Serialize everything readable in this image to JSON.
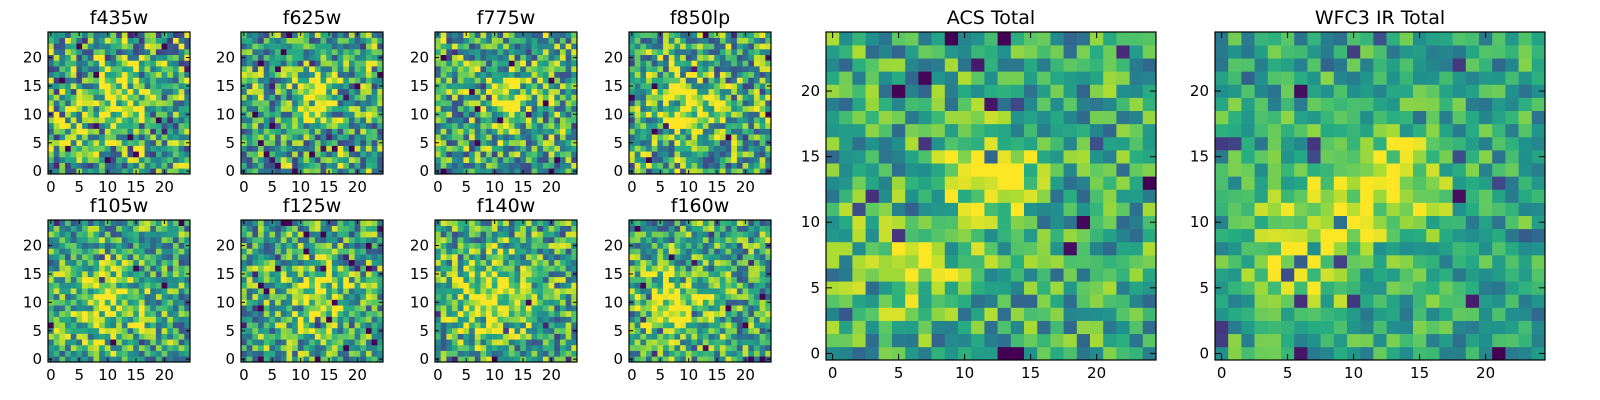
{
  "chart_data": {
    "type": "heatmap",
    "colormap": "viridis",
    "grid": false,
    "panels": [
      {
        "title": "f435w",
        "xlim": [
          0,
          24
        ],
        "ylim": [
          0,
          24
        ],
        "xticks": [
          0,
          5,
          10,
          15,
          20
        ],
        "yticks": [
          0,
          5,
          10,
          15,
          20
        ],
        "blob": {
          "x": 12,
          "y": 13,
          "strength": 0.32,
          "width": 3.5
        },
        "noise": 0.55,
        "seed": 11
      },
      {
        "title": "f625w",
        "xlim": [
          0,
          24
        ],
        "ylim": [
          0,
          24
        ],
        "xticks": [
          0,
          5,
          10,
          15,
          20
        ],
        "yticks": [
          0,
          5,
          10,
          15,
          20
        ],
        "blob": {
          "x": 12,
          "y": 13,
          "strength": 0.42,
          "width": 2.6
        },
        "noise": 0.5,
        "seed": 23
      },
      {
        "title": "f775w",
        "xlim": [
          0,
          24
        ],
        "ylim": [
          0,
          24
        ],
        "xticks": [
          0,
          5,
          10,
          15,
          20
        ],
        "yticks": [
          0,
          5,
          10,
          15,
          20
        ],
        "blob": {
          "x": 12,
          "y": 13,
          "strength": 0.4,
          "width": 3.0
        },
        "noise": 0.5,
        "seed": 37
      },
      {
        "title": "f850lp",
        "xlim": [
          0,
          24
        ],
        "ylim": [
          0,
          24
        ],
        "xticks": [
          0,
          5,
          10,
          15,
          20
        ],
        "yticks": [
          0,
          5,
          10,
          15,
          20
        ],
        "blob": {
          "x": 10,
          "y": 11,
          "strength": 0.36,
          "width": 3.6
        },
        "noise": 0.5,
        "seed": 41
      },
      {
        "title": "f105w",
        "xlim": [
          0,
          24
        ],
        "ylim": [
          0,
          24
        ],
        "xticks": [
          0,
          5,
          10,
          15,
          20
        ],
        "yticks": [
          0,
          5,
          10,
          15,
          20
        ],
        "blob": {
          "x": 10,
          "y": 10,
          "strength": 0.3,
          "width": 4.5
        },
        "noise": 0.45,
        "seed": 53
      },
      {
        "title": "f125w",
        "xlim": [
          0,
          24
        ],
        "ylim": [
          0,
          24
        ],
        "xticks": [
          0,
          5,
          10,
          15,
          20
        ],
        "yticks": [
          0,
          5,
          10,
          15,
          20
        ],
        "blob": {
          "x": 12,
          "y": 11,
          "strength": 0.34,
          "width": 4.0
        },
        "noise": 0.45,
        "seed": 67
      },
      {
        "title": "f140w",
        "xlim": [
          0,
          24
        ],
        "ylim": [
          0,
          24
        ],
        "xticks": [
          0,
          5,
          10,
          15,
          20
        ],
        "yticks": [
          0,
          5,
          10,
          15,
          20
        ],
        "blob": {
          "x": 9,
          "y": 11,
          "strength": 0.36,
          "width": 4.8
        },
        "noise": 0.45,
        "seed": 79
      },
      {
        "title": "f160w",
        "xlim": [
          0,
          24
        ],
        "ylim": [
          0,
          24
        ],
        "xticks": [
          0,
          5,
          10,
          15,
          20
        ],
        "yticks": [
          0,
          5,
          10,
          15,
          20
        ],
        "blob": {
          "x": 7,
          "y": 9,
          "strength": 0.4,
          "width": 4.2
        },
        "noise": 0.45,
        "seed": 83
      },
      {
        "title": "ACS Total",
        "xlim": [
          0,
          24
        ],
        "ylim": [
          0,
          24
        ],
        "xticks": [
          0,
          5,
          10,
          15,
          20
        ],
        "yticks": [
          0,
          5,
          10,
          15,
          20
        ],
        "blob": {
          "x": 12,
          "y": 13,
          "strength": 0.42,
          "width": 2.4
        },
        "blob2": {
          "x": 6,
          "y": 7,
          "strength": 0.22,
          "width": 3.0
        },
        "noise": 0.35,
        "seed": 97
      },
      {
        "title": "WFC3 IR Total",
        "xlim": [
          0,
          24
        ],
        "ylim": [
          0,
          24
        ],
        "xticks": [
          0,
          5,
          10,
          15,
          20
        ],
        "yticks": [
          0,
          5,
          10,
          15,
          20
        ],
        "blob": {
          "x": 12,
          "y": 13,
          "strength": 0.35,
          "width": 3.4
        },
        "blob2": {
          "x": 6,
          "y": 8,
          "strength": 0.35,
          "width": 3.0
        },
        "noise": 0.28,
        "seed": 101
      }
    ]
  }
}
